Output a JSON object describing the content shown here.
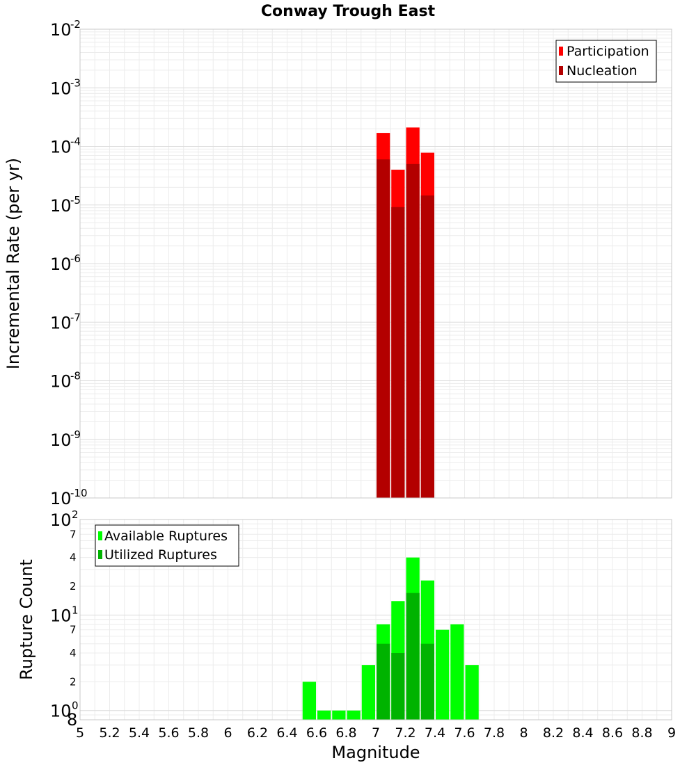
{
  "chart_data": [
    {
      "type": "bar",
      "title": "Conway Trough East",
      "xlabel": "",
      "ylabel": "Incremental Rate (per yr)",
      "xlim": [
        5,
        9
      ],
      "ylim": [
        1e-10,
        0.01
      ],
      "yscale": "log",
      "bar_width": 0.1,
      "x_ticks": [
        "5",
        "5.2",
        "5.4",
        "5.6",
        "5.8",
        "6",
        "6.2",
        "6.4",
        "6.6",
        "6.8",
        "7",
        "7.2",
        "7.4",
        "7.6",
        "7.8",
        "8",
        "8.2",
        "8.4",
        "8.6",
        "8.8",
        "9"
      ],
      "y_ticks": [
        {
          "base": "10",
          "exp": "-10",
          "value": 1e-10
        },
        {
          "base": "10",
          "exp": "-9",
          "value": 1e-09
        },
        {
          "base": "10",
          "exp": "-8",
          "value": 1e-08
        },
        {
          "base": "10",
          "exp": "-7",
          "value": 1e-07
        },
        {
          "base": "10",
          "exp": "-6",
          "value": 1e-06
        },
        {
          "base": "10",
          "exp": "-5",
          "value": 1e-05
        },
        {
          "base": "10",
          "exp": "-4",
          "value": 0.0001
        },
        {
          "base": "10",
          "exp": "-3",
          "value": 0.001
        },
        {
          "base": "10",
          "exp": "-2",
          "value": 0.01
        }
      ],
      "series": [
        {
          "name": "Participation",
          "color": "#ff0000",
          "x": [
            7.05,
            7.15,
            7.25,
            7.35
          ],
          "values": [
            0.00017,
            4e-05,
            0.00021,
            7.8e-05
          ]
        },
        {
          "name": "Nucleation",
          "color": "#b30000",
          "x": [
            7.05,
            7.15,
            7.25,
            7.35
          ],
          "values": [
            6e-05,
            9.2e-06,
            5e-05,
            1.45e-05
          ]
        }
      ],
      "legend_position": "top-right"
    },
    {
      "type": "bar",
      "title": "",
      "xlabel": "Magnitude",
      "ylabel": "Rupture Count",
      "xlim": [
        5,
        9
      ],
      "ylim": [
        0.8,
        100
      ],
      "yscale": "log",
      "bar_width": 0.1,
      "x_ticks": [
        "5",
        "5.2",
        "5.4",
        "5.6",
        "5.8",
        "6",
        "6.2",
        "6.4",
        "6.6",
        "6.8",
        "7",
        "7.2",
        "7.4",
        "7.6",
        "7.8",
        "8",
        "8.2",
        "8.4",
        "8.6",
        "8.8",
        "9"
      ],
      "y_major_ticks": [
        {
          "base": "10",
          "exp": "0",
          "value": 1
        },
        {
          "base": "10",
          "exp": "1",
          "value": 10
        },
        {
          "base": "10",
          "exp": "2",
          "value": 100
        }
      ],
      "y_minor_ticks": [
        {
          "label": "8",
          "value": 0.8
        },
        {
          "label": "2",
          "value": 2
        },
        {
          "label": "4",
          "value": 4
        },
        {
          "label": "7",
          "value": 7
        },
        {
          "label": "2",
          "value": 20
        },
        {
          "label": "4",
          "value": 40
        },
        {
          "label": "7",
          "value": 70
        }
      ],
      "series": [
        {
          "name": "Available Ruptures",
          "color": "#00ff00",
          "x": [
            6.55,
            6.65,
            6.75,
            6.85,
            6.95,
            7.05,
            7.15,
            7.25,
            7.35,
            7.45,
            7.55,
            7.65
          ],
          "values": [
            2,
            1,
            1,
            1,
            3,
            8,
            14,
            40,
            23,
            7,
            8,
            3
          ]
        },
        {
          "name": "Utilized Ruptures",
          "color": "#00b300",
          "x": [
            7.05,
            7.15,
            7.25,
            7.35
          ],
          "values": [
            5,
            4,
            17,
            5
          ]
        }
      ],
      "legend_position": "top-left"
    }
  ]
}
